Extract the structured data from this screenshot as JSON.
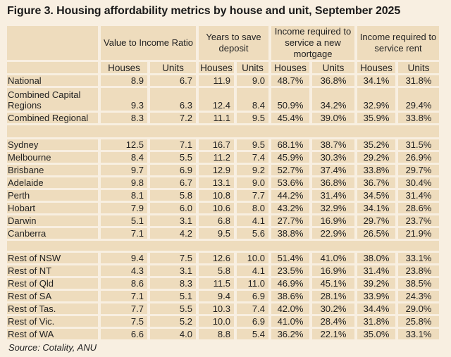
{
  "title": "Figure 3. Housing affordability metrics by house and unit, September 2025",
  "table": {
    "groups": [
      "Value to Income Ratio",
      "Years to save deposit",
      "Income required to service a new mortgage",
      "Income required to service rent"
    ],
    "subheaders": [
      "Houses",
      "Units",
      "Houses",
      "Units",
      "Houses",
      "Units",
      "Houses",
      "Units"
    ],
    "sections": [
      [
        {
          "label": "National",
          "values": [
            "8.9",
            "6.7",
            "11.9",
            "9.0",
            "48.7%",
            "36.8%",
            "34.1%",
            "31.8%"
          ]
        },
        {
          "label": "Combined Capital Regions",
          "values": [
            "9.3",
            "6.3",
            "12.4",
            "8.4",
            "50.9%",
            "34.2%",
            "32.9%",
            "29.4%"
          ]
        },
        {
          "label": "Combined Regional",
          "values": [
            "8.3",
            "7.2",
            "11.1",
            "9.5",
            "45.4%",
            "39.0%",
            "35.9%",
            "33.8%"
          ]
        }
      ],
      [
        {
          "label": "Sydney",
          "values": [
            "12.5",
            "7.1",
            "16.7",
            "9.5",
            "68.1%",
            "38.7%",
            "35.2%",
            "31.5%"
          ]
        },
        {
          "label": "Melbourne",
          "values": [
            "8.4",
            "5.5",
            "11.2",
            "7.4",
            "45.9%",
            "30.3%",
            "29.2%",
            "26.9%"
          ]
        },
        {
          "label": "Brisbane",
          "values": [
            "9.7",
            "6.9",
            "12.9",
            "9.2",
            "52.7%",
            "37.4%",
            "33.8%",
            "29.7%"
          ]
        },
        {
          "label": "Adelaide",
          "values": [
            "9.8",
            "6.7",
            "13.1",
            "9.0",
            "53.6%",
            "36.8%",
            "36.7%",
            "30.4%"
          ]
        },
        {
          "label": "Perth",
          "values": [
            "8.1",
            "5.8",
            "10.8",
            "7.7",
            "44.2%",
            "31.4%",
            "34.5%",
            "31.4%"
          ]
        },
        {
          "label": "Hobart",
          "values": [
            "7.9",
            "6.0",
            "10.6",
            "8.0",
            "43.2%",
            "32.9%",
            "34.1%",
            "28.6%"
          ]
        },
        {
          "label": "Darwin",
          "values": [
            "5.1",
            "3.1",
            "6.8",
            "4.1",
            "27.7%",
            "16.9%",
            "29.7%",
            "23.7%"
          ]
        },
        {
          "label": "Canberra",
          "values": [
            "7.1",
            "4.2",
            "9.5",
            "5.6",
            "38.8%",
            "22.9%",
            "26.5%",
            "21.9%"
          ]
        }
      ],
      [
        {
          "label": "Rest of NSW",
          "values": [
            "9.4",
            "7.5",
            "12.6",
            "10.0",
            "51.4%",
            "41.0%",
            "38.0%",
            "33.1%"
          ]
        },
        {
          "label": "Rest of NT",
          "values": [
            "4.3",
            "3.1",
            "5.8",
            "4.1",
            "23.5%",
            "16.9%",
            "31.4%",
            "23.8%"
          ]
        },
        {
          "label": "Rest of Qld",
          "values": [
            "8.6",
            "8.3",
            "11.5",
            "11.0",
            "46.9%",
            "45.1%",
            "39.2%",
            "38.5%"
          ]
        },
        {
          "label": "Rest of SA",
          "values": [
            "7.1",
            "5.1",
            "9.4",
            "6.9",
            "38.6%",
            "28.1%",
            "33.9%",
            "24.3%"
          ]
        },
        {
          "label": "Rest of Tas.",
          "values": [
            "7.7",
            "5.5",
            "10.3",
            "7.4",
            "42.0%",
            "30.2%",
            "34.4%",
            "29.0%"
          ]
        },
        {
          "label": "Rest of Vic.",
          "values": [
            "7.5",
            "5.2",
            "10.0",
            "6.9",
            "41.0%",
            "28.4%",
            "31.8%",
            "25.8%"
          ]
        },
        {
          "label": "Rest of WA",
          "values": [
            "6.6",
            "4.0",
            "8.8",
            "5.4",
            "36.2%",
            "22.1%",
            "35.0%",
            "33.1%"
          ]
        }
      ]
    ]
  },
  "source": "Source: Cotality, ANU",
  "colors": {
    "background": "#f8efe1",
    "cell": "#eedcbd"
  }
}
